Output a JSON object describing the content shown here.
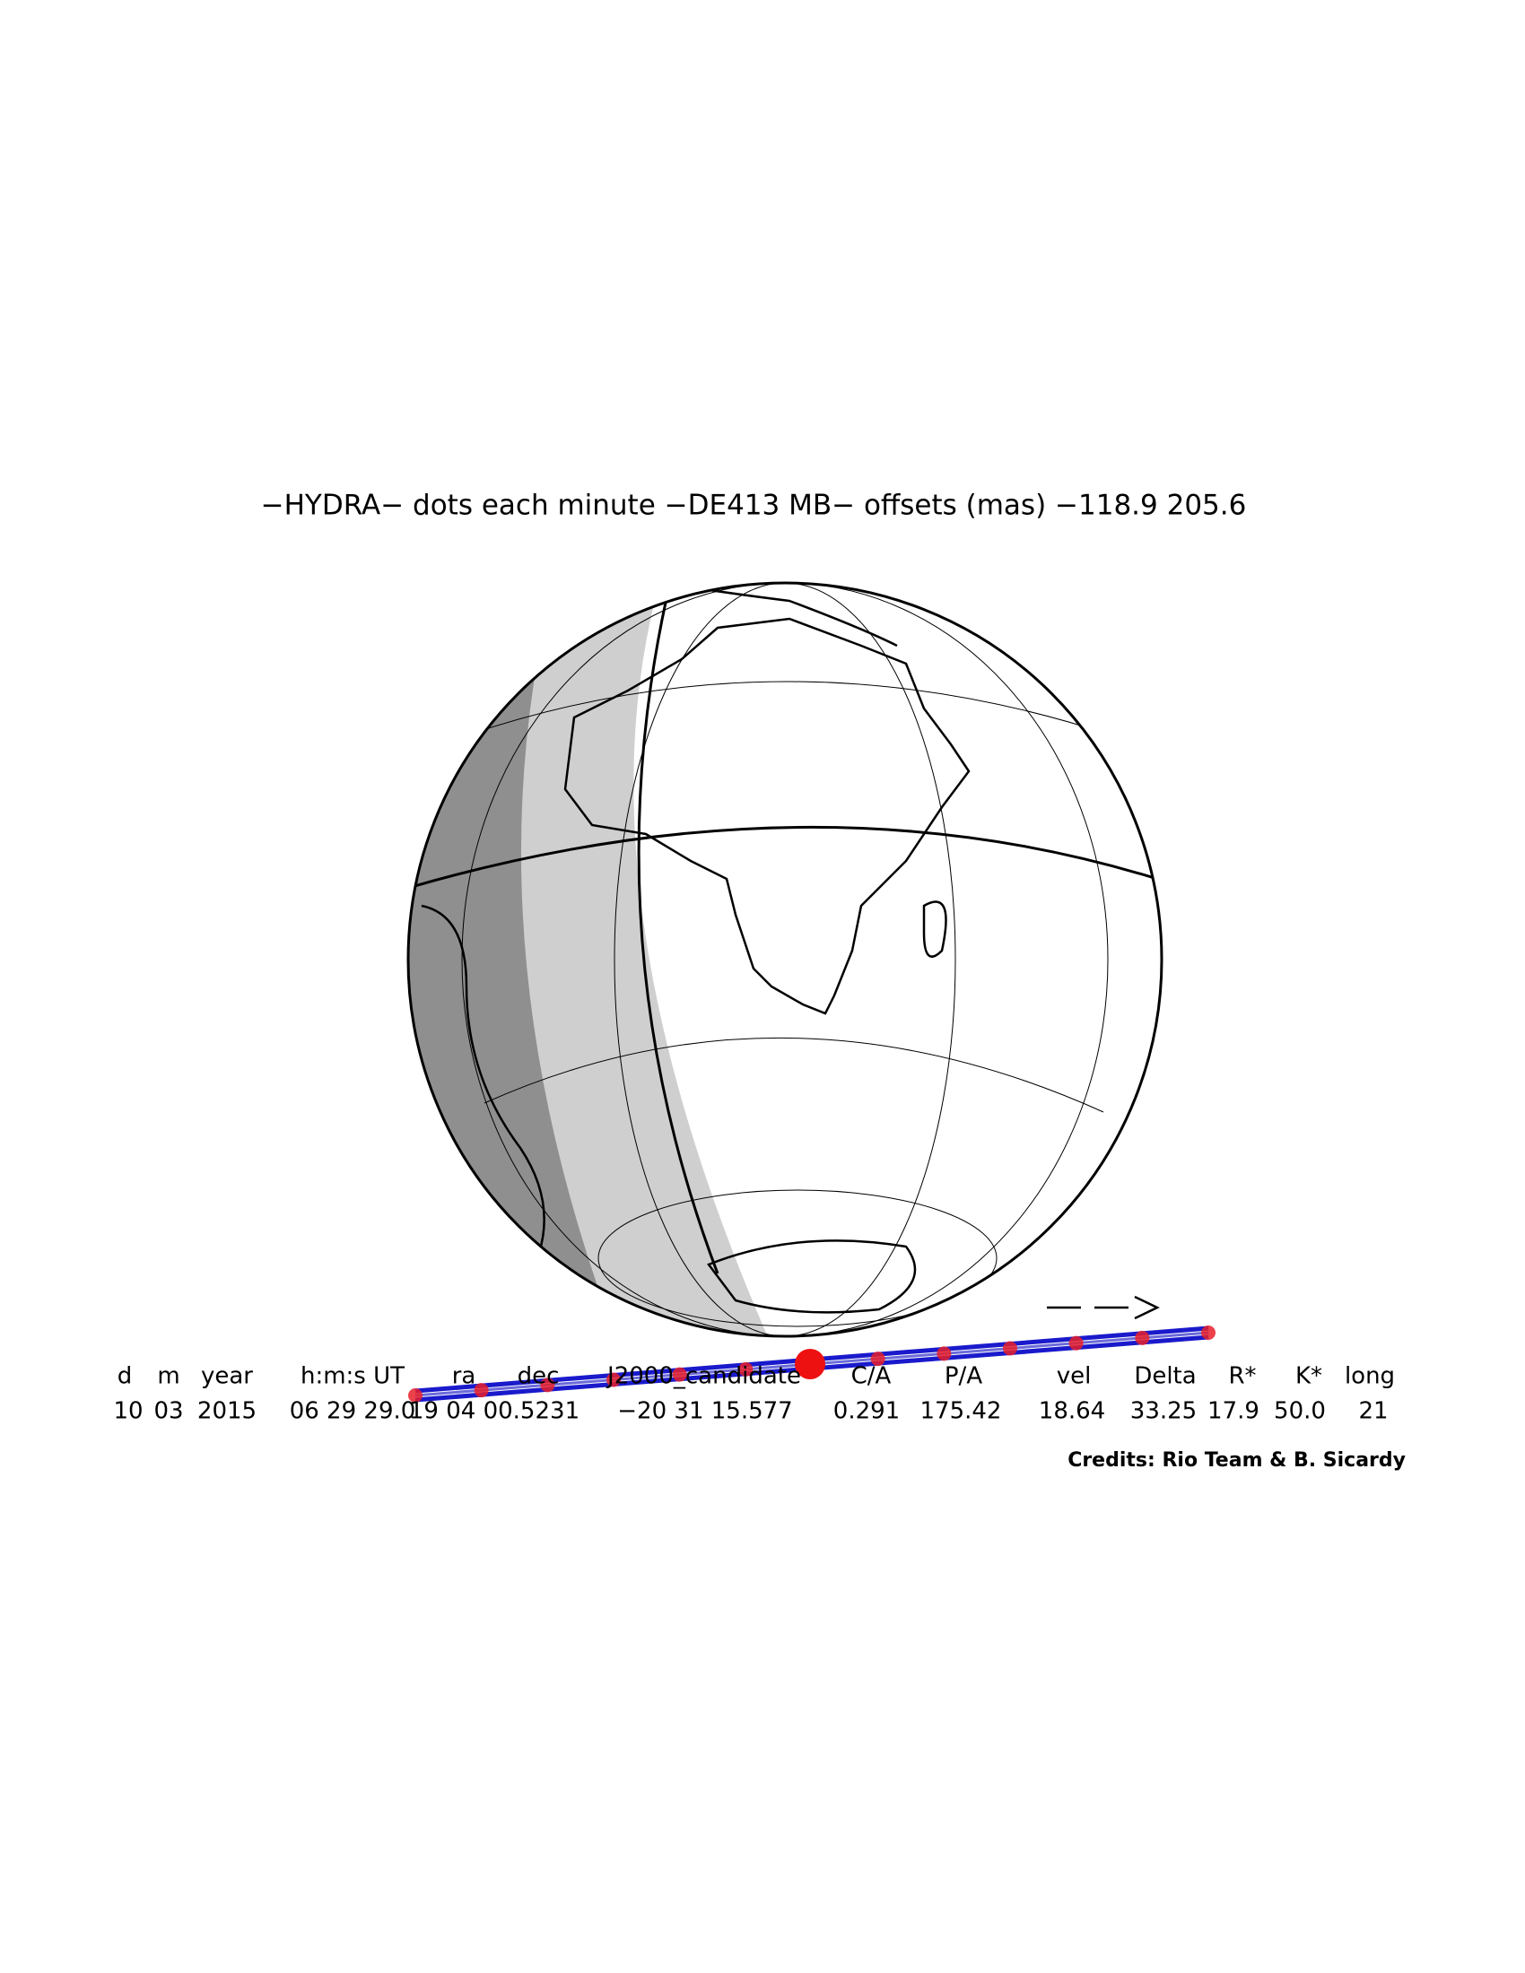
{
  "title": "−HYDRA− dots each minute −DE413 MB− offsets (mas) −118.9   205.6",
  "table": {
    "headers": [
      "d",
      "m",
      "year",
      "h:m:s UT",
      "ra",
      "dec",
      "J2000_candidate",
      "C/A",
      "P/A",
      "vel",
      "Delta",
      "R*",
      "K*",
      "long"
    ],
    "values": [
      "10",
      "03",
      "2015",
      "06 29 29.0",
      "19 04 00.5231",
      "−20 31 15.577",
      "0.291",
      "175.42",
      "18.64",
      "33.25",
      "17.9",
      "50.0",
      "21"
    ]
  },
  "credits": "Credits: Rio Team & B. Sicardy"
}
